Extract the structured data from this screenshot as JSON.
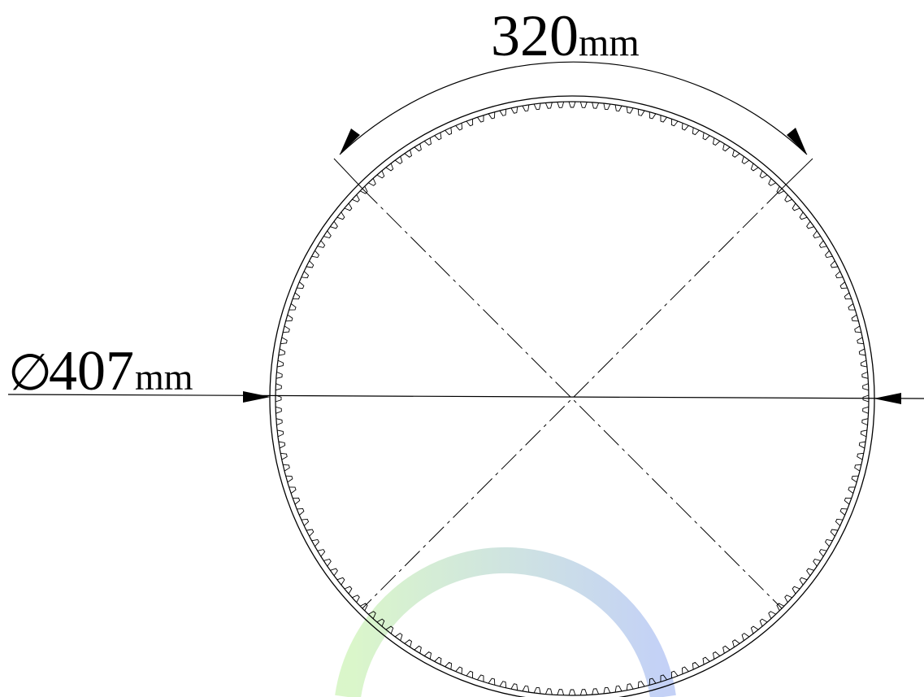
{
  "dimensions": {
    "arc_length": {
      "symbol": "⌒",
      "value": "320",
      "unit": "mm"
    },
    "diameter": {
      "symbol": "∅",
      "value": "407",
      "unit": "mm"
    }
  },
  "ring": {
    "tooth_count": 160
  },
  "colors": {
    "line": "#000000",
    "background": "#ffffff",
    "watermark_start": "#d4f5c0",
    "watermark_end": "#b9c9f5"
  }
}
